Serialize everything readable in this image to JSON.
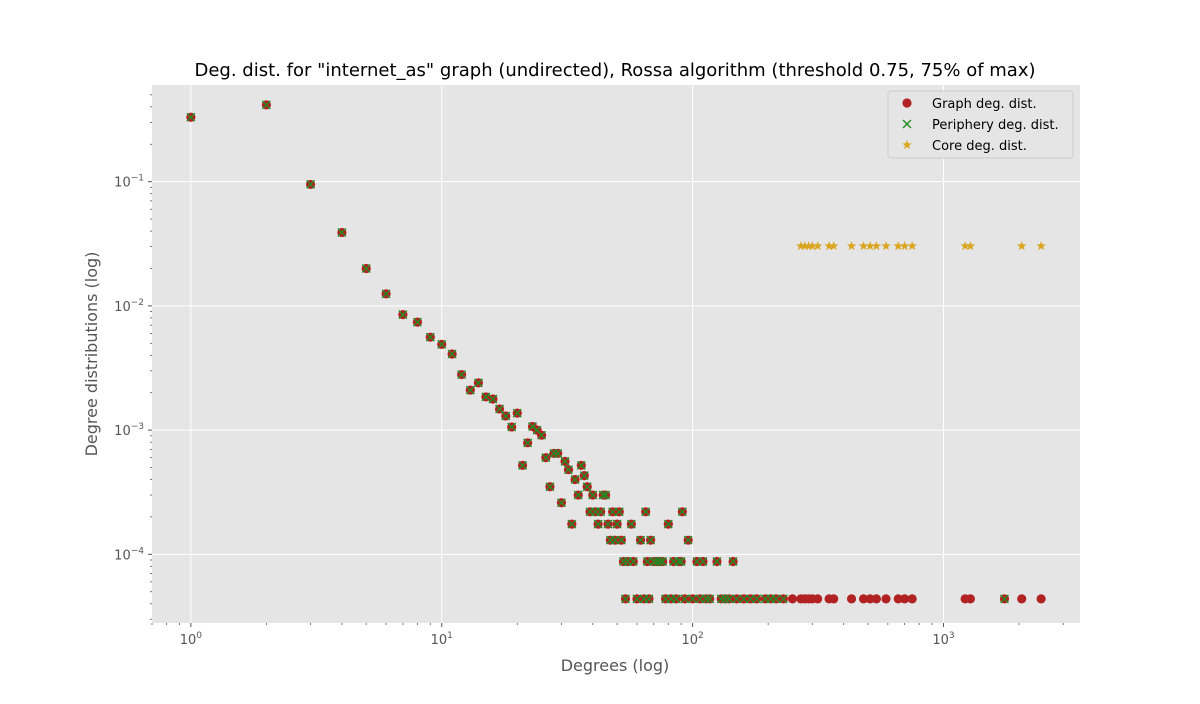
{
  "chart_data": {
    "type": "scatter",
    "title": "Deg. dist. for \"internet_as\" graph (undirected), Rossa algorithm (threshold 0.75, 75% of max)",
    "xlabel": "Degrees (log)",
    "ylabel": "Degree distributions (log)",
    "xscale": "log",
    "yscale": "log",
    "xlim": [
      0.7,
      3500
    ],
    "ylim": [
      2.8e-05,
      0.6
    ],
    "grid": true,
    "legend_position": "top-right",
    "x_ticks": [
      {
        "value": 1,
        "base": "10",
        "exp": "0"
      },
      {
        "value": 10,
        "base": "10",
        "exp": "1"
      },
      {
        "value": 100,
        "base": "10",
        "exp": "2"
      },
      {
        "value": 1000,
        "base": "10",
        "exp": "3"
      }
    ],
    "y_ticks": [
      {
        "value": 0.0001,
        "base": "10",
        "exp": "−4"
      },
      {
        "value": 0.001,
        "base": "10",
        "exp": "−3"
      },
      {
        "value": 0.01,
        "base": "10",
        "exp": "−2"
      },
      {
        "value": 0.1,
        "base": "10",
        "exp": "−1"
      }
    ],
    "series": [
      {
        "name": "Graph deg. dist.",
        "marker": "circle",
        "color": "#b22222",
        "points": [
          [
            1,
            0.33
          ],
          [
            2,
            0.415
          ],
          [
            3,
            0.095
          ],
          [
            4,
            0.039
          ],
          [
            5,
            0.02
          ],
          [
            6,
            0.0125
          ],
          [
            7,
            0.0085
          ],
          [
            8,
            0.0074
          ],
          [
            9,
            0.0056
          ],
          [
            10,
            0.0049
          ],
          [
            11,
            0.0041
          ],
          [
            12,
            0.0028
          ],
          [
            13,
            0.0021
          ],
          [
            14,
            0.0024
          ],
          [
            15,
            0.00185
          ],
          [
            16,
            0.00178
          ],
          [
            17,
            0.00148
          ],
          [
            18,
            0.0013
          ],
          [
            19,
            0.00106
          ],
          [
            20,
            0.00137
          ],
          [
            21,
            0.00052
          ],
          [
            22,
            0.00079
          ],
          [
            23,
            0.00107
          ],
          [
            24,
            0.001
          ],
          [
            25,
            0.00091
          ],
          [
            26,
            0.0006
          ],
          [
            27,
            0.00035
          ],
          [
            28,
            0.00065
          ],
          [
            29,
            0.00065
          ],
          [
            30,
            0.00026
          ],
          [
            31,
            0.00056
          ],
          [
            32,
            0.00048
          ],
          [
            33,
            0.000175
          ],
          [
            34,
            0.0004
          ],
          [
            35,
            0.0003
          ],
          [
            36,
            0.00052
          ],
          [
            37,
            0.00043
          ],
          [
            38,
            0.00035
          ],
          [
            39,
            0.00022
          ],
          [
            40,
            0.0003
          ],
          [
            41,
            0.00022
          ],
          [
            42,
            0.000175
          ],
          [
            43,
            0.00022
          ],
          [
            44,
            0.0003
          ],
          [
            45,
            0.0003
          ],
          [
            46,
            0.000175
          ],
          [
            47,
            0.00013
          ],
          [
            48,
            0.00022
          ],
          [
            49,
            0.00013
          ],
          [
            50,
            0.000175
          ],
          [
            51,
            0.00022
          ],
          [
            52,
            0.00013
          ],
          [
            53,
            8.75e-05
          ],
          [
            54,
            4.38e-05
          ],
          [
            55,
            8.75e-05
          ],
          [
            57,
            0.000175
          ],
          [
            58,
            8.75e-05
          ],
          [
            60,
            4.38e-05
          ],
          [
            62,
            0.00013
          ],
          [
            64,
            4.38e-05
          ],
          [
            65,
            0.00022
          ],
          [
            66,
            8.75e-05
          ],
          [
            67,
            4.38e-05
          ],
          [
            68,
            0.00013
          ],
          [
            70,
            8.75e-05
          ],
          [
            72,
            8.75e-05
          ],
          [
            74,
            8.75e-05
          ],
          [
            76,
            8.75e-05
          ],
          [
            78,
            4.38e-05
          ],
          [
            80,
            0.000175
          ],
          [
            82,
            4.38e-05
          ],
          [
            84,
            8.75e-05
          ],
          [
            86,
            4.38e-05
          ],
          [
            88,
            8.75e-05
          ],
          [
            90,
            8.75e-05
          ],
          [
            91,
            0.00022
          ],
          [
            93,
            4.38e-05
          ],
          [
            96,
            0.00013
          ],
          [
            100,
            4.38e-05
          ],
          [
            104,
            8.75e-05
          ],
          [
            107,
            4.38e-05
          ],
          [
            110,
            8.75e-05
          ],
          [
            113,
            4.38e-05
          ],
          [
            117,
            4.38e-05
          ],
          [
            125,
            8.75e-05
          ],
          [
            130,
            4.38e-05
          ],
          [
            135,
            4.38e-05
          ],
          [
            140,
            4.38e-05
          ],
          [
            145,
            8.75e-05
          ],
          [
            150,
            4.38e-05
          ],
          [
            160,
            4.38e-05
          ],
          [
            170,
            4.38e-05
          ],
          [
            180,
            4.38e-05
          ],
          [
            195,
            4.38e-05
          ],
          [
            205,
            4.38e-05
          ],
          [
            215,
            4.38e-05
          ],
          [
            230,
            4.38e-05
          ],
          [
            250,
            4.38e-05
          ],
          [
            270,
            4.38e-05
          ],
          [
            280,
            4.38e-05
          ],
          [
            290,
            4.38e-05
          ],
          [
            300,
            4.38e-05
          ],
          [
            315,
            4.38e-05
          ],
          [
            350,
            4.38e-05
          ],
          [
            365,
            4.38e-05
          ],
          [
            430,
            4.38e-05
          ],
          [
            480,
            4.38e-05
          ],
          [
            510,
            4.38e-05
          ],
          [
            540,
            4.38e-05
          ],
          [
            590,
            4.38e-05
          ],
          [
            660,
            4.38e-05
          ],
          [
            700,
            4.38e-05
          ],
          [
            750,
            4.38e-05
          ],
          [
            1220,
            4.38e-05
          ],
          [
            1280,
            4.38e-05
          ],
          [
            1750,
            4.38e-05
          ],
          [
            2050,
            4.38e-05
          ],
          [
            2450,
            4.38e-05
          ]
        ]
      },
      {
        "name": "Periphery deg. dist.",
        "marker": "x",
        "color": "#228b22",
        "points": [
          [
            1,
            0.33
          ],
          [
            2,
            0.415
          ],
          [
            3,
            0.095
          ],
          [
            4,
            0.039
          ],
          [
            5,
            0.02
          ],
          [
            6,
            0.0125
          ],
          [
            7,
            0.0085
          ],
          [
            8,
            0.0074
          ],
          [
            9,
            0.0056
          ],
          [
            10,
            0.0049
          ],
          [
            11,
            0.0041
          ],
          [
            12,
            0.0028
          ],
          [
            13,
            0.0021
          ],
          [
            14,
            0.0024
          ],
          [
            15,
            0.00185
          ],
          [
            16,
            0.00178
          ],
          [
            17,
            0.00148
          ],
          [
            18,
            0.0013
          ],
          [
            19,
            0.00106
          ],
          [
            20,
            0.00137
          ],
          [
            21,
            0.00052
          ],
          [
            22,
            0.00079
          ],
          [
            23,
            0.00107
          ],
          [
            24,
            0.001
          ],
          [
            25,
            0.00091
          ],
          [
            26,
            0.0006
          ],
          [
            27,
            0.00035
          ],
          [
            28,
            0.00065
          ],
          [
            29,
            0.00065
          ],
          [
            30,
            0.00026
          ],
          [
            31,
            0.00056
          ],
          [
            32,
            0.00048
          ],
          [
            33,
            0.000175
          ],
          [
            34,
            0.0004
          ],
          [
            35,
            0.0003
          ],
          [
            36,
            0.00052
          ],
          [
            37,
            0.00043
          ],
          [
            38,
            0.00035
          ],
          [
            39,
            0.00022
          ],
          [
            40,
            0.0003
          ],
          [
            41,
            0.00022
          ],
          [
            42,
            0.000175
          ],
          [
            43,
            0.00022
          ],
          [
            44,
            0.0003
          ],
          [
            45,
            0.0003
          ],
          [
            46,
            0.000175
          ],
          [
            47,
            0.00013
          ],
          [
            48,
            0.00022
          ],
          [
            49,
            0.00013
          ],
          [
            50,
            0.000175
          ],
          [
            51,
            0.00022
          ],
          [
            52,
            0.00013
          ],
          [
            53,
            8.75e-05
          ],
          [
            54,
            4.38e-05
          ],
          [
            55,
            8.75e-05
          ],
          [
            57,
            0.000175
          ],
          [
            58,
            8.75e-05
          ],
          [
            60,
            4.38e-05
          ],
          [
            62,
            0.00013
          ],
          [
            64,
            4.38e-05
          ],
          [
            65,
            0.00022
          ],
          [
            66,
            8.75e-05
          ],
          [
            67,
            4.38e-05
          ],
          [
            68,
            0.00013
          ],
          [
            70,
            8.75e-05
          ],
          [
            72,
            8.75e-05
          ],
          [
            74,
            8.75e-05
          ],
          [
            76,
            8.75e-05
          ],
          [
            78,
            4.38e-05
          ],
          [
            80,
            0.000175
          ],
          [
            82,
            4.38e-05
          ],
          [
            84,
            8.75e-05
          ],
          [
            86,
            4.38e-05
          ],
          [
            88,
            8.75e-05
          ],
          [
            90,
            8.75e-05
          ],
          [
            91,
            0.00022
          ],
          [
            93,
            4.38e-05
          ],
          [
            96,
            0.00013
          ],
          [
            100,
            4.38e-05
          ],
          [
            104,
            8.75e-05
          ],
          [
            107,
            4.38e-05
          ],
          [
            110,
            8.75e-05
          ],
          [
            113,
            4.38e-05
          ],
          [
            117,
            4.38e-05
          ],
          [
            125,
            8.75e-05
          ],
          [
            130,
            4.38e-05
          ],
          [
            135,
            4.38e-05
          ],
          [
            140,
            4.38e-05
          ],
          [
            145,
            8.75e-05
          ],
          [
            150,
            4.38e-05
          ],
          [
            160,
            4.38e-05
          ],
          [
            170,
            4.38e-05
          ],
          [
            180,
            4.38e-05
          ],
          [
            195,
            4.38e-05
          ],
          [
            205,
            4.38e-05
          ],
          [
            215,
            4.38e-05
          ],
          [
            230,
            4.38e-05
          ],
          [
            1750,
            4.38e-05
          ]
        ]
      },
      {
        "name": "Core deg. dist.",
        "marker": "star",
        "color": "#daa520",
        "points": [
          [
            270,
            0.0303
          ],
          [
            280,
            0.0303
          ],
          [
            290,
            0.0303
          ],
          [
            300,
            0.0303
          ],
          [
            315,
            0.0303
          ],
          [
            350,
            0.0303
          ],
          [
            365,
            0.0303
          ],
          [
            430,
            0.0303
          ],
          [
            480,
            0.0303
          ],
          [
            510,
            0.0303
          ],
          [
            540,
            0.0303
          ],
          [
            590,
            0.0303
          ],
          [
            660,
            0.0303
          ],
          [
            700,
            0.0303
          ],
          [
            750,
            0.0303
          ],
          [
            1220,
            0.0303
          ],
          [
            1280,
            0.0303
          ],
          [
            2050,
            0.0303
          ],
          [
            2450,
            0.0303
          ]
        ]
      }
    ]
  }
}
